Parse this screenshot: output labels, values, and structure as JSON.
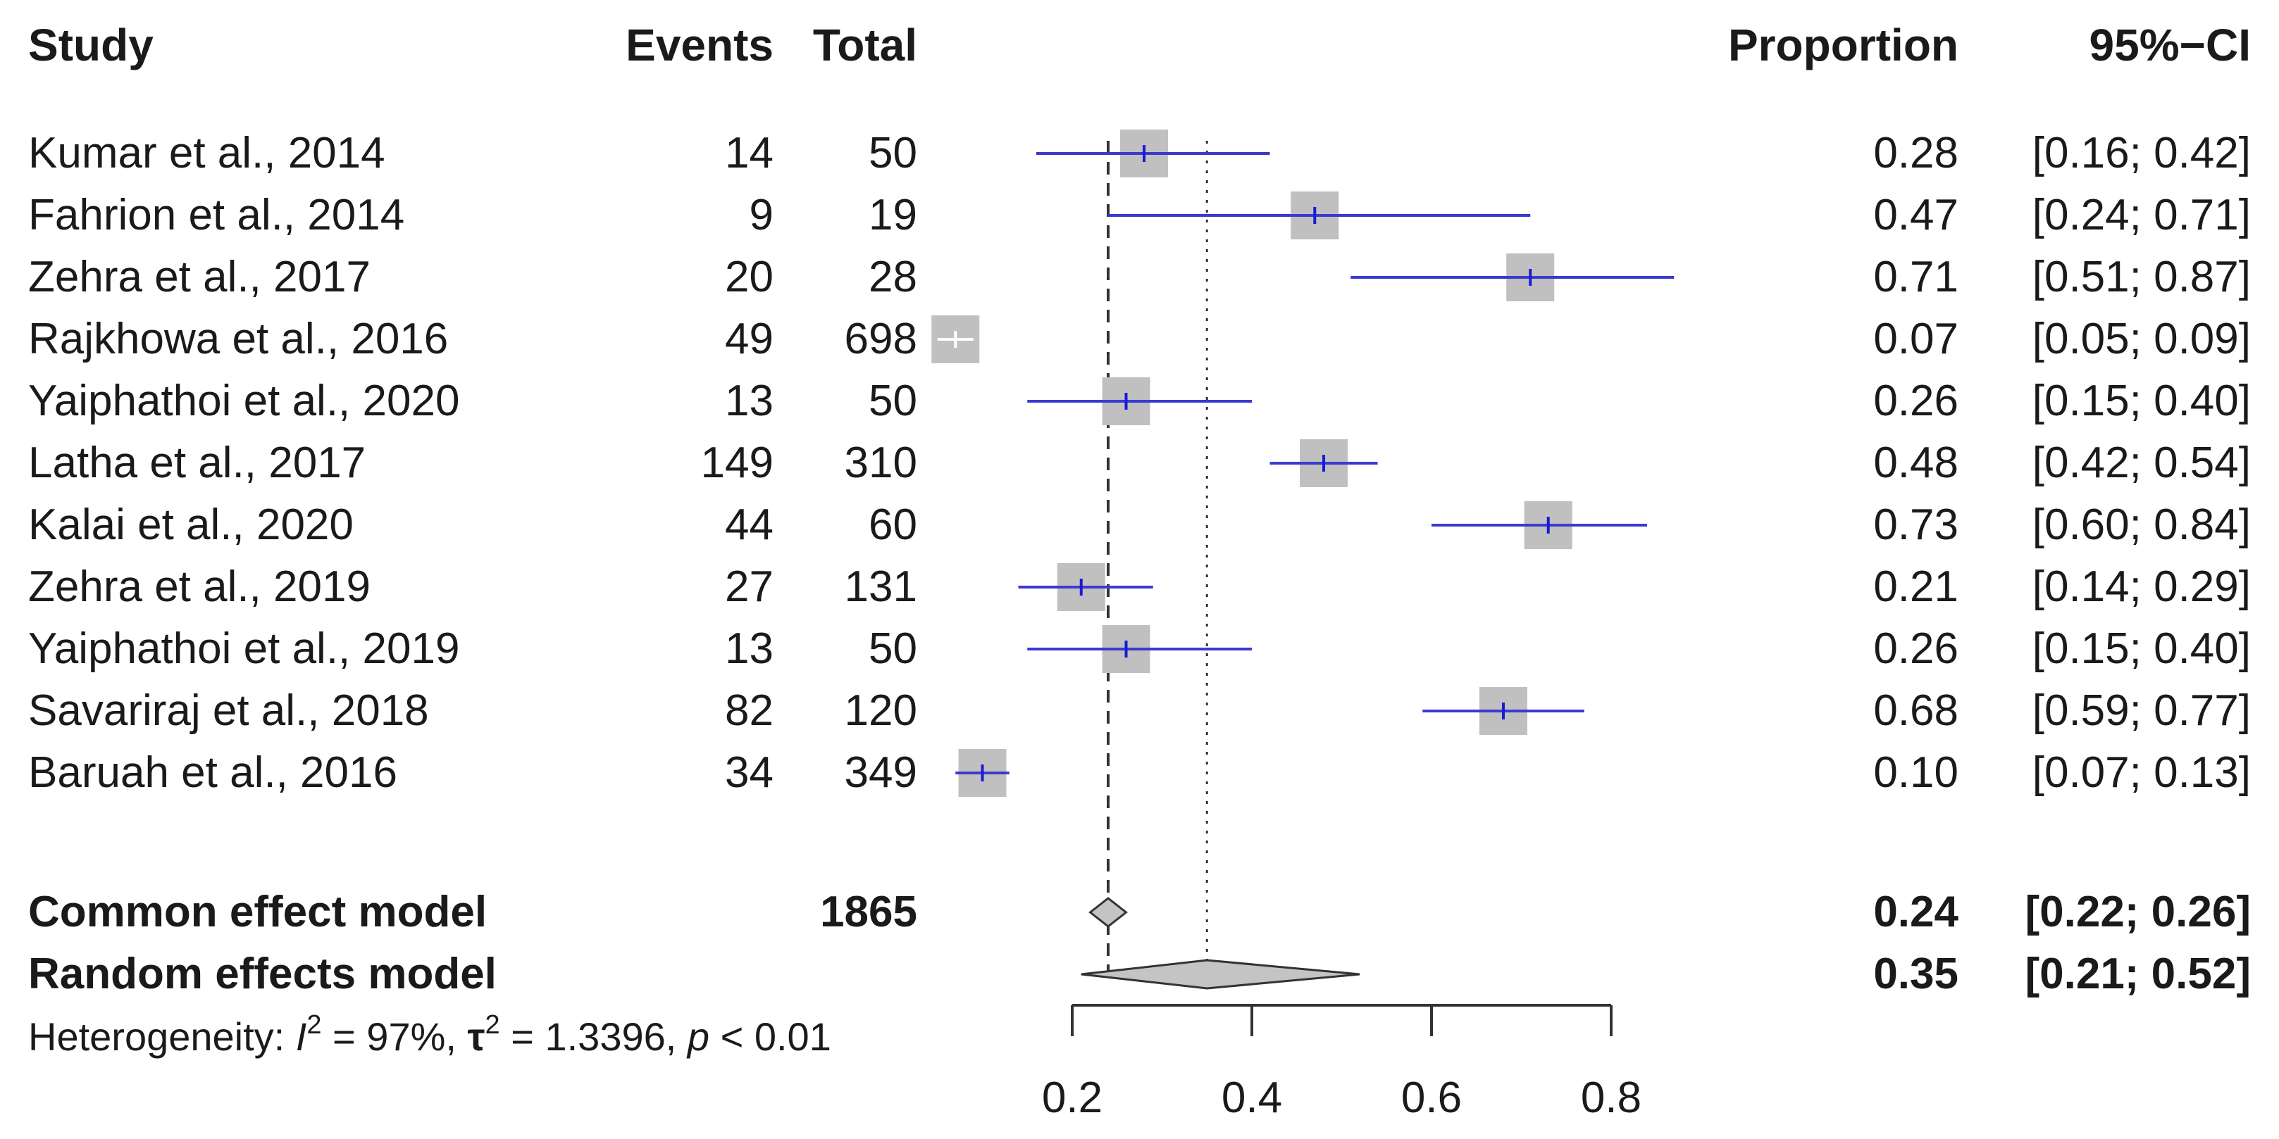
{
  "chart_data": {
    "type": "forest",
    "columns": {
      "study": "Study",
      "events": "Events",
      "total": "Total",
      "proportion": "Proportion",
      "ci": "95%−CI"
    },
    "studies": [
      {
        "name": "Kumar et al., 2014",
        "events": "14",
        "total": "50",
        "proportion": 0.28,
        "ci_low": 0.16,
        "ci_high": 0.42,
        "prop_label": "0.28",
        "ci_label": "[0.16; 0.42]"
      },
      {
        "name": "Fahrion et al., 2014",
        "events": "9",
        "total": "19",
        "proportion": 0.47,
        "ci_low": 0.24,
        "ci_high": 0.71,
        "prop_label": "0.47",
        "ci_label": "[0.24; 0.71]"
      },
      {
        "name": "Zehra et al., 2017",
        "events": "20",
        "total": "28",
        "proportion": 0.71,
        "ci_low": 0.51,
        "ci_high": 0.87,
        "prop_label": "0.71",
        "ci_label": "[0.51; 0.87]"
      },
      {
        "name": "Rajkhowa et al., 2016",
        "events": "49",
        "total": "698",
        "proportion": 0.07,
        "ci_low": 0.05,
        "ci_high": 0.09,
        "prop_label": "0.07",
        "ci_label": "[0.05; 0.09]"
      },
      {
        "name": "Yaiphathoi et al., 2020",
        "events": "13",
        "total": "50",
        "proportion": 0.26,
        "ci_low": 0.15,
        "ci_high": 0.4,
        "prop_label": "0.26",
        "ci_label": "[0.15; 0.40]"
      },
      {
        "name": "Latha et al., 2017",
        "events": "149",
        "total": "310",
        "proportion": 0.48,
        "ci_low": 0.42,
        "ci_high": 0.54,
        "prop_label": "0.48",
        "ci_label": "[0.42; 0.54]"
      },
      {
        "name": "Kalai et al., 2020",
        "events": "44",
        "total": "60",
        "proportion": 0.73,
        "ci_low": 0.6,
        "ci_high": 0.84,
        "prop_label": "0.73",
        "ci_label": "[0.60; 0.84]"
      },
      {
        "name": "Zehra et al., 2019",
        "events": "27",
        "total": "131",
        "proportion": 0.21,
        "ci_low": 0.14,
        "ci_high": 0.29,
        "prop_label": "0.21",
        "ci_label": "[0.14; 0.29]"
      },
      {
        "name": "Yaiphathoi et al., 2019",
        "events": "13",
        "total": "50",
        "proportion": 0.26,
        "ci_low": 0.15,
        "ci_high": 0.4,
        "prop_label": "0.26",
        "ci_label": "[0.15; 0.40]"
      },
      {
        "name": "Savariraj et al., 2018",
        "events": "82",
        "total": "120",
        "proportion": 0.68,
        "ci_low": 0.59,
        "ci_high": 0.77,
        "prop_label": "0.68",
        "ci_label": "[0.59; 0.77]"
      },
      {
        "name": "Baruah et al., 2016",
        "events": "34",
        "total": "349",
        "proportion": 0.1,
        "ci_low": 0.07,
        "ci_high": 0.13,
        "prop_label": "0.10",
        "ci_label": "[0.07; 0.13]"
      }
    ],
    "common_effect": {
      "name": "Common effect model",
      "total": "1865",
      "estimate": 0.24,
      "ci_low": 0.22,
      "ci_high": 0.26,
      "prop_label": "0.24",
      "ci_label": "[0.22; 0.26]"
    },
    "random_effects": {
      "name": "Random effects model",
      "estimate": 0.35,
      "ci_low": 0.21,
      "ci_high": 0.52,
      "prop_label": "0.35",
      "ci_label": "[0.21; 0.52]"
    },
    "heterogeneity": {
      "prefix": "Heterogeneity: ",
      "i_symbol": "I",
      "i_value": " = 97%, ",
      "tau_symbol": "τ",
      "tau_value": " = 1.3396, ",
      "p_symbol": "p",
      "p_value": " < 0.01",
      "superscript": "2"
    },
    "x_axis": {
      "ticks": [
        "0.2",
        "0.4",
        "0.6",
        "0.8"
      ],
      "tick_values": [
        0.2,
        0.4,
        0.6,
        0.8
      ]
    },
    "colors": {
      "ci_line": "#3a3ad0",
      "box": "#c0c0c0",
      "point": "#1a1ad8",
      "diamond": "#c4c4c4",
      "reference": "#333333"
    }
  }
}
